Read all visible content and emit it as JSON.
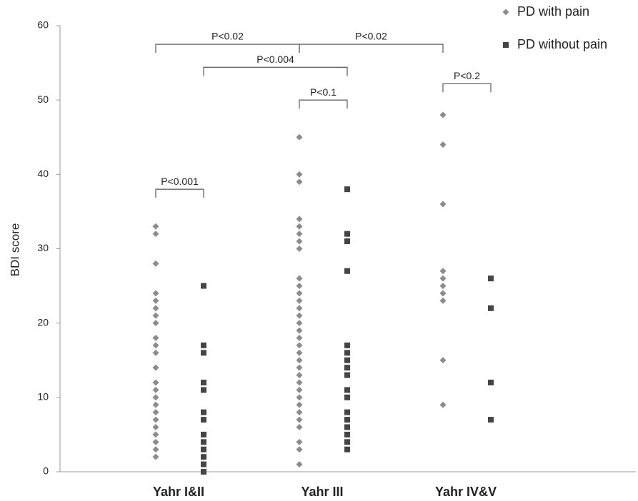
{
  "chart_data": {
    "type": "strip",
    "y_label": "BDI score",
    "categories": [
      "Yahr I&II",
      "Yahr III",
      "Yahr IV&V"
    ],
    "series": [
      {
        "name": "PD with pain",
        "color": "#8c8c8c",
        "marker": "diamond",
        "values": [
          [
            33,
            32,
            28,
            24,
            23,
            22,
            21,
            20,
            18,
            17,
            16,
            14,
            12,
            11,
            10,
            9,
            8,
            7,
            6,
            5,
            4,
            3,
            2
          ],
          [
            45,
            40,
            39,
            34,
            33,
            32,
            31,
            30,
            26,
            25,
            24,
            23,
            22,
            21,
            20,
            19,
            18,
            17,
            16,
            15,
            14,
            13,
            12,
            11,
            10,
            9,
            8,
            7,
            6,
            4,
            3,
            1
          ],
          [
            48,
            44,
            36,
            27,
            26,
            25,
            24,
            23,
            15,
            9
          ]
        ]
      },
      {
        "name": "PD without pain",
        "color": "#454545",
        "marker": "square",
        "values": [
          [
            25,
            17,
            16,
            12,
            11,
            8,
            7,
            5,
            4,
            3,
            2,
            1,
            0
          ],
          [
            38,
            32,
            31,
            27,
            17,
            16,
            15,
            14,
            13,
            11,
            10,
            8,
            7,
            6,
            5,
            4,
            3
          ],
          [
            26,
            22,
            12,
            7
          ]
        ]
      }
    ],
    "ylim": [
      0,
      60
    ],
    "yticks": [
      0,
      10,
      20,
      30,
      40,
      50,
      60
    ],
    "grid": false,
    "legend": "top-right",
    "annotations": [
      {
        "label": "P<0.02",
        "y": 57.5,
        "between": [
          [
            0,
            0
          ],
          [
            1,
            0
          ]
        ]
      },
      {
        "label": "P<0.02",
        "y": 57.5,
        "between": [
          [
            1,
            0
          ],
          [
            2,
            0
          ]
        ]
      },
      {
        "label": "P<0.004",
        "y": 54.4,
        "between": [
          [
            0,
            1
          ],
          [
            1,
            1
          ]
        ]
      },
      {
        "label": "P<0.1",
        "y": 50,
        "between": [
          [
            1,
            0
          ],
          [
            1,
            1
          ]
        ]
      },
      {
        "label": "P<0.2",
        "y": 52.2,
        "between": [
          [
            2,
            0
          ],
          [
            2,
            1
          ]
        ]
      },
      {
        "label": "P<0.001",
        "y": 38,
        "between": [
          [
            0,
            0
          ],
          [
            0,
            1
          ]
        ]
      }
    ]
  }
}
